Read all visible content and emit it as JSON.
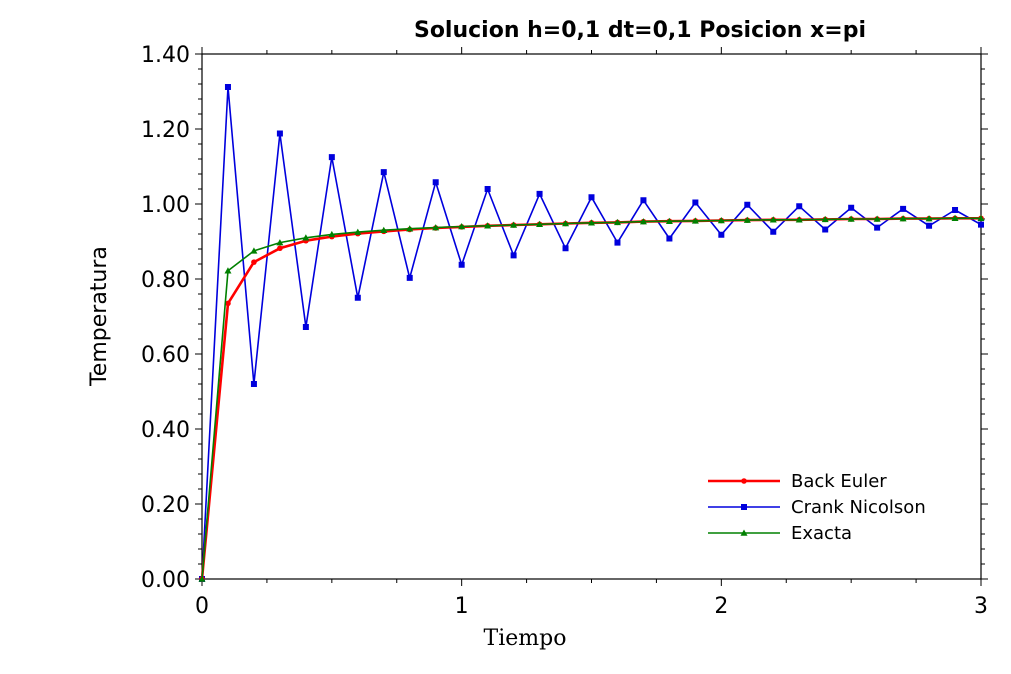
{
  "chart_data": {
    "type": "line",
    "title": "Solucion  h=0,1  dt=0,1 Posicion x=pi",
    "xlabel": "Tiempo",
    "ylabel": "Temperatura",
    "xlim": [
      0,
      3
    ],
    "ylim": [
      0,
      1.4
    ],
    "xticks": [
      0,
      1,
      2,
      3
    ],
    "xtick_labels": [
      "0",
      "1",
      "2",
      "3"
    ],
    "yticks": [
      0,
      0.2,
      0.4,
      0.6,
      0.8,
      1.0,
      1.2,
      1.4
    ],
    "ytick_labels": [
      "0.00",
      "0.20",
      "0.40",
      "0.60",
      "0.80",
      "1.00",
      "1.20",
      "1.40"
    ],
    "grid": false,
    "legend_position": "lower-right",
    "x": [
      0,
      0.1,
      0.2,
      0.3,
      0.4,
      0.5,
      0.6,
      0.7,
      0.8,
      0.9,
      1.0,
      1.1,
      1.2,
      1.3,
      1.4,
      1.5,
      1.6,
      1.7,
      1.8,
      1.9,
      2.0,
      2.1,
      2.2,
      2.3,
      2.4,
      2.5,
      2.6,
      2.7,
      2.8,
      2.9,
      3.0
    ],
    "series": [
      {
        "name": "Back Euler",
        "color": "#ff0000",
        "marker": "circle",
        "values": [
          0,
          0.735,
          0.845,
          0.882,
          0.902,
          0.913,
          0.921,
          0.927,
          0.932,
          0.936,
          0.939,
          0.942,
          0.944,
          0.946,
          0.948,
          0.95,
          0.951,
          0.953,
          0.954,
          0.955,
          0.956,
          0.957,
          0.958,
          0.958,
          0.959,
          0.96,
          0.96,
          0.961,
          0.961,
          0.962,
          0.962
        ]
      },
      {
        "name": "Crank Nicolson",
        "color": "#0000dd",
        "marker": "square",
        "values": [
          0,
          1.312,
          0.52,
          1.188,
          0.672,
          1.125,
          0.75,
          1.085,
          0.803,
          1.058,
          0.838,
          1.04,
          0.863,
          1.027,
          0.882,
          1.018,
          0.897,
          1.01,
          0.908,
          1.004,
          0.918,
          0.998,
          0.926,
          0.994,
          0.932,
          0.99,
          0.937,
          0.987,
          0.942,
          0.984,
          0.945
        ]
      },
      {
        "name": "Exacta",
        "color": "#008000",
        "marker": "triangle",
        "values": [
          0,
          0.822,
          0.875,
          0.897,
          0.91,
          0.919,
          0.925,
          0.93,
          0.934,
          0.937,
          0.94,
          0.942,
          0.944,
          0.946,
          0.948,
          0.95,
          0.951,
          0.953,
          0.954,
          0.955,
          0.956,
          0.957,
          0.958,
          0.958,
          0.959,
          0.96,
          0.96,
          0.961,
          0.961,
          0.962,
          0.962
        ]
      }
    ]
  }
}
